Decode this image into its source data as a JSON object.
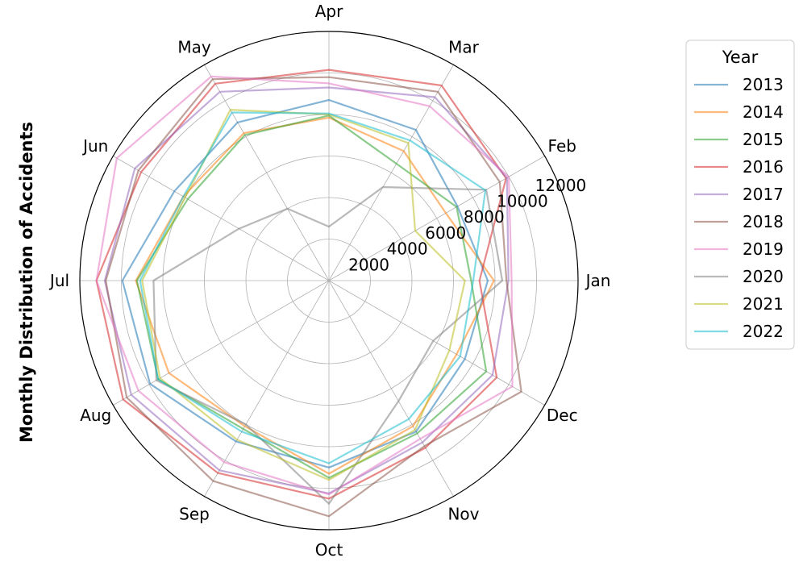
{
  "chart_data": {
    "type": "radar",
    "ylabel": "Monthly Distribution of Accidents",
    "legend_title": "Year",
    "legend_placement": "right",
    "categories": [
      "Jan",
      "Feb",
      "Mar",
      "Apr",
      "May",
      "Jun",
      "Jul",
      "Aug",
      "Sep",
      "Oct",
      "Nov",
      "Dec"
    ],
    "r_ticks": [
      2000,
      4000,
      6000,
      8000,
      10000,
      12000
    ],
    "r_tick_labels": [
      "2000",
      "4000",
      "6000",
      "8000",
      "10000",
      "12000"
    ],
    "rlim": [
      0,
      12000
    ],
    "grid": true,
    "series": [
      {
        "name": "2013",
        "color": "#1f77b4",
        "values": [
          7650,
          7150,
          8380,
          8700,
          8800,
          8600,
          9950,
          9950,
          8950,
          9000,
          8400,
          7560
        ]
      },
      {
        "name": "2014",
        "color": "#ff7f0e",
        "values": [
          7950,
          6500,
          7200,
          7850,
          8200,
          8100,
          9300,
          8900,
          8100,
          9300,
          8100,
          7100
        ]
      },
      {
        "name": "2015",
        "color": "#2ca02c",
        "values": [
          6850,
          7100,
          6500,
          7950,
          8100,
          7850,
          9250,
          9500,
          8250,
          9500,
          8500,
          8750
        ]
      },
      {
        "name": "2016",
        "color": "#d62728",
        "values": [
          7250,
          9850,
          10850,
          10150,
          10950,
          10450,
          11200,
          11450,
          10700,
          10500,
          9300,
          9330
        ]
      },
      {
        "name": "2017",
        "color": "#9467bd",
        "values": [
          8650,
          9900,
          10200,
          9300,
          10500,
          10800,
          10800,
          11000,
          10550,
          10250,
          9000,
          9100
        ]
      },
      {
        "name": "2018",
        "color": "#8c564b",
        "values": [
          8550,
          9500,
          10500,
          9800,
          11200,
          10600,
          10750,
          11250,
          11150,
          11350,
          9200,
          10700
        ]
      },
      {
        "name": "2019",
        "color": "#e377c2",
        "values": [
          8800,
          10000,
          9700,
          9500,
          11350,
          11800,
          11200,
          10600,
          10100,
          10300,
          8800,
          10200
        ]
      },
      {
        "name": "2020",
        "color": "#7f7f7f",
        "values": [
          8350,
          8750,
          5200,
          2600,
          4000,
          5000,
          8450,
          9600,
          8000,
          10750,
          6700,
          5800
        ]
      },
      {
        "name": "2021",
        "color": "#bcbd22",
        "values": [
          6550,
          4800,
          7650,
          8000,
          9500,
          8000,
          9000,
          9400,
          8850,
          9600,
          8300,
          6700
        ]
      },
      {
        "name": "2022",
        "color": "#17becf",
        "values": [
          6950,
          8700,
          7800,
          8050,
          9350,
          8100,
          9100,
          9500,
          8400,
          8800,
          7700,
          7300
        ]
      }
    ]
  }
}
